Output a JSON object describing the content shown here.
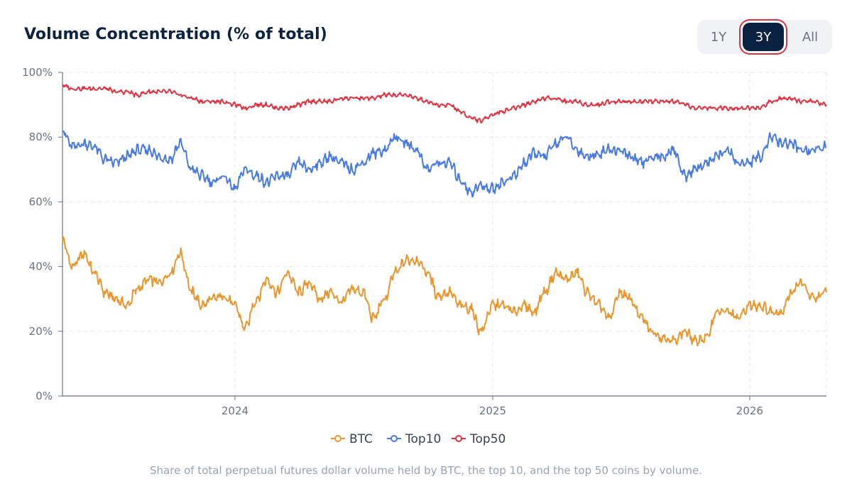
{
  "title": "Volume Concentration (% of total)",
  "range_buttons": [
    "1Y",
    "3Y",
    "All"
  ],
  "active_range": "3Y",
  "caption": "Share of total perpetual futures dollar volume held by BTC, the top 10, and the top 50 coins by volume.",
  "colors": {
    "btc": "#e8962e",
    "top10": "#4a7be0",
    "top50": "#e03341",
    "active_outline": "#d93444",
    "active_bg": "#0b2140"
  },
  "chart_data": {
    "type": "line",
    "xlabel": "",
    "ylabel": "",
    "ylim": [
      0,
      100
    ],
    "yticks": [
      0,
      20,
      40,
      60,
      80,
      100
    ],
    "ytick_labels": [
      "0%",
      "20%",
      "40%",
      "60%",
      "80%",
      "100%"
    ],
    "xlim": [
      "2023-05-01",
      "2026-04-20"
    ],
    "xticks": [
      "2024-01-01",
      "2025-01-01",
      "2026-01-01"
    ],
    "xtick_labels": [
      "2024",
      "2025",
      "2026"
    ],
    "grid": true,
    "legend": "bottom-center",
    "x": [
      "2023-05-01",
      "2023-05-15",
      "2023-06-01",
      "2023-06-15",
      "2023-07-01",
      "2023-07-15",
      "2023-08-01",
      "2023-08-15",
      "2023-09-01",
      "2023-09-15",
      "2023-10-01",
      "2023-10-15",
      "2023-11-01",
      "2023-11-15",
      "2023-12-01",
      "2023-12-15",
      "2024-01-01",
      "2024-01-15",
      "2024-02-01",
      "2024-02-15",
      "2024-03-01",
      "2024-03-15",
      "2024-04-01",
      "2024-04-15",
      "2024-05-01",
      "2024-05-15",
      "2024-06-01",
      "2024-06-15",
      "2024-07-01",
      "2024-07-15",
      "2024-08-01",
      "2024-08-15",
      "2024-09-01",
      "2024-09-15",
      "2024-10-01",
      "2024-10-15",
      "2024-11-01",
      "2024-11-15",
      "2024-12-01",
      "2024-12-15",
      "2025-01-01",
      "2025-01-15",
      "2025-02-01",
      "2025-02-15",
      "2025-03-01",
      "2025-03-15",
      "2025-04-01",
      "2025-04-15",
      "2025-05-01",
      "2025-05-15",
      "2025-06-01",
      "2025-06-15",
      "2025-07-01",
      "2025-07-15",
      "2025-08-01",
      "2025-08-15",
      "2025-09-01",
      "2025-09-15",
      "2025-10-01",
      "2025-10-15",
      "2025-11-01",
      "2025-11-15",
      "2025-12-01",
      "2025-12-15",
      "2026-01-01",
      "2026-01-15",
      "2026-02-01",
      "2026-02-15",
      "2026-03-01",
      "2026-03-15",
      "2026-04-01",
      "2026-04-20"
    ],
    "series": [
      {
        "name": "BTC",
        "values": [
          48,
          40,
          44,
          38,
          32,
          30,
          28,
          33,
          36,
          35,
          38,
          44,
          32,
          28,
          30,
          31,
          28,
          21,
          30,
          36,
          32,
          38,
          32,
          35,
          30,
          32,
          29,
          33,
          32,
          24,
          30,
          38,
          42,
          42,
          38,
          31,
          32,
          28,
          27,
          20,
          28,
          28,
          26,
          28,
          26,
          32,
          38,
          36,
          38,
          32,
          28,
          24,
          32,
          30,
          24,
          20,
          18,
          17,
          20,
          17,
          18,
          26,
          26,
          24,
          28,
          28,
          26,
          26,
          32,
          35,
          30,
          32
        ]
      },
      {
        "name": "Top10",
        "values": [
          82,
          77,
          78,
          77,
          73,
          72,
          74,
          76,
          76,
          74,
          73,
          78,
          70,
          68,
          66,
          68,
          64,
          70,
          68,
          66,
          68,
          68,
          72,
          70,
          72,
          74,
          72,
          70,
          72,
          75,
          76,
          80,
          78,
          76,
          70,
          72,
          72,
          67,
          63,
          65,
          64,
          66,
          68,
          72,
          75,
          74,
          78,
          80,
          76,
          74,
          75,
          76,
          76,
          74,
          72,
          74,
          74,
          76,
          68,
          70,
          72,
          74,
          76,
          72,
          72,
          74,
          80,
          78,
          78,
          76,
          76,
          77
        ]
      },
      {
        "name": "Top50",
        "values": [
          96,
          95,
          95,
          95,
          95,
          94,
          94,
          93,
          94,
          94,
          94,
          93,
          92,
          91,
          91,
          91,
          90,
          89,
          90,
          90,
          89,
          89,
          90,
          91,
          91,
          91,
          92,
          92,
          92,
          92,
          93,
          93,
          93,
          92,
          91,
          90,
          90,
          88,
          86,
          85,
          87,
          88,
          89,
          90,
          91,
          92,
          92,
          91,
          91,
          90,
          90,
          91,
          91,
          91,
          91,
          91,
          91,
          91,
          90,
          89,
          89,
          89,
          89,
          89,
          89,
          89,
          91,
          92,
          92,
          91,
          91,
          90
        ]
      }
    ]
  }
}
